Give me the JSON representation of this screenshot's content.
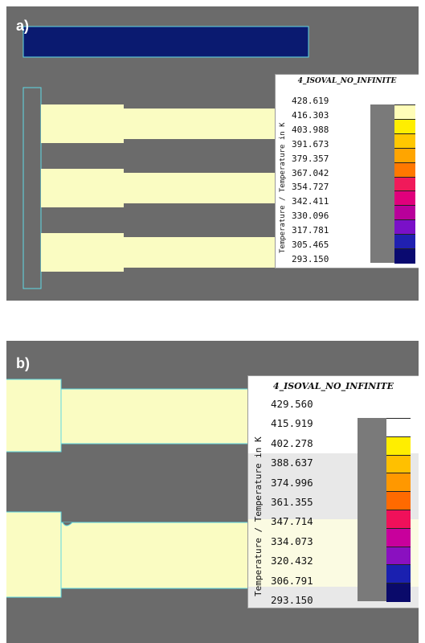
{
  "panels": [
    {
      "id": "a",
      "label": "a)",
      "legend": {
        "title": "4_ISOVAL_NO_INFINITE",
        "axis_label": "Temperature / Temperature in K",
        "values": [
          "428.619",
          "416.303",
          "403.988",
          "391.673",
          "379.357",
          "367.042",
          "354.727",
          "342.411",
          "330.096",
          "317.781",
          "305.465",
          "293.150"
        ],
        "colors": [
          "#fffdb8",
          "#ffee00",
          "#ffc800",
          "#ffa500",
          "#ff7800",
          "#f01a5a",
          "#e0007c",
          "#b8009a",
          "#7a10c8",
          "#2020b0",
          "#0a0a70"
        ]
      }
    },
    {
      "id": "b",
      "label": "b)",
      "legend": {
        "title": "4_ISOVAL_NO_INFINITE",
        "axis_label": "Temperature / Temperature in K",
        "values": [
          "429.560",
          "415.919",
          "402.278",
          "388.637",
          "374.996",
          "361.355",
          "347.714",
          "334.073",
          "320.432",
          "306.791",
          "293.150"
        ],
        "colors": [
          "#ffffff",
          "#ffee00",
          "#ffc000",
          "#ff9800",
          "#ff6a00",
          "#f0105a",
          "#c8009c",
          "#8a10c0",
          "#1a20b0",
          "#0a0a6a"
        ]
      }
    }
  ],
  "colors": {
    "background": "#6b6b6b",
    "material": "#fafcc2",
    "outline": "#5fd8e4",
    "dark_block": "#0a1a70"
  }
}
